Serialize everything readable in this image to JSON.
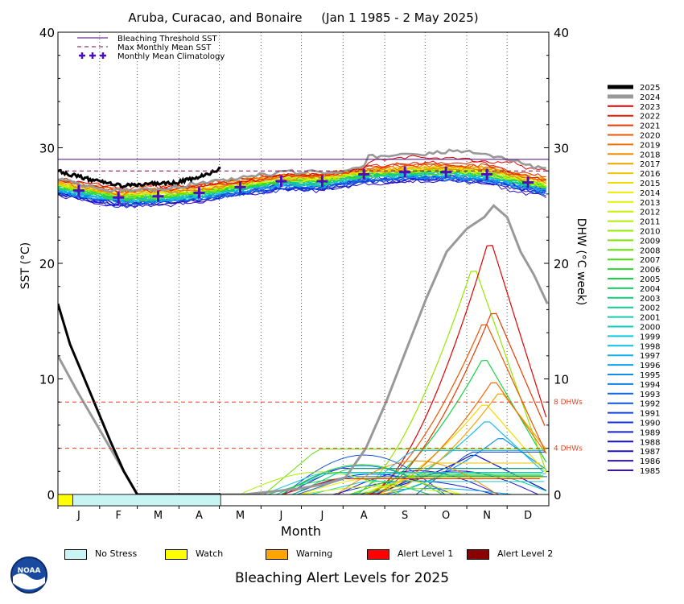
{
  "chart_data": {
    "type": "line",
    "title": "Aruba, Curacao, and Bonaire     (Jan 1 1985 - 2 May 2025)",
    "xlabel": "Month",
    "ylabel_left": "SST (°C)",
    "ylabel_right": "DHW (°C week)",
    "ylim": [
      0,
      40
    ],
    "yticks": [
      0,
      10,
      20,
      30,
      40
    ],
    "month_labels": [
      "J",
      "F",
      "M",
      "A",
      "M",
      "J",
      "J",
      "A",
      "S",
      "O",
      "N",
      "D"
    ],
    "grid": "dotted vertical month lines",
    "legend_top": [
      {
        "label": "Bleaching Threshold SST",
        "style": "solid",
        "color": "#4b0082"
      },
      {
        "label": "Max Monthly Mean SST",
        "style": "dashed",
        "color": "#7a0040"
      },
      {
        "label": "Monthly Mean Climatology",
        "style": "plus",
        "color": "#4b0fbf"
      }
    ],
    "bleaching_threshold": 29.0,
    "max_monthly_mean": 28.0,
    "dhw_threshold_lines": [
      {
        "label": "8 DHWs",
        "value": 8
      },
      {
        "label": "4 DHWs",
        "value": 4
      }
    ],
    "climatology": {
      "months": [
        1,
        2,
        3,
        4,
        5,
        6,
        7,
        8,
        9,
        10,
        11,
        12
      ],
      "values": [
        26.3,
        25.7,
        25.8,
        26.1,
        26.6,
        27.1,
        27.1,
        27.7,
        27.9,
        27.9,
        27.7,
        27.0
      ]
    },
    "years": [
      "2025",
      "2024",
      "2023",
      "2022",
      "2021",
      "2020",
      "2019",
      "2018",
      "2017",
      "2016",
      "2015",
      "2014",
      "2013",
      "2012",
      "2011",
      "2010",
      "2009",
      "2008",
      "2007",
      "2006",
      "2005",
      "2004",
      "2003",
      "2002",
      "2001",
      "2000",
      "1999",
      "1998",
      "1997",
      "1996",
      "1995",
      "1994",
      "1993",
      "1992",
      "1991",
      "1990",
      "1989",
      "1988",
      "1987",
      "1986",
      "1985"
    ],
    "year_colors": {
      "2025": "#000000",
      "2024": "#999999",
      "2023": "#e00000",
      "2022": "#e01a00",
      "2021": "#e83a00",
      "2020": "#ec5500",
      "2019": "#ef7000",
      "2018": "#f08c00",
      "2017": "#f0a400",
      "2016": "#f2c200",
      "2015": "#f4da00",
      "2014": "#f0ea00",
      "2013": "#e0f000",
      "2012": "#c8f000",
      "2011": "#b0ee00",
      "2010": "#96e800",
      "2009": "#7ce400",
      "2008": "#60e000",
      "2007": "#44dc10",
      "2006": "#28d830",
      "2005": "#14d448",
      "2004": "#10d060",
      "2003": "#10cc7a",
      "2002": "#10cc94",
      "2001": "#10ccae",
      "2000": "#10ccc6",
      "1999": "#10c8dc",
      "1998": "#10c0ec",
      "1997": "#10b0ee",
      "1996": "#10a0ee",
      "1995": "#1090ec",
      "1994": "#107ce8",
      "1993": "#1068e4",
      "1992": "#1054e0",
      "1991": "#1040dc",
      "1990": "#1030d8",
      "1989": "#1020d0",
      "1988": "#1010c8",
      "1987": "#2010c4",
      "1986": "#3010c4",
      "1985": "#4010c8"
    },
    "sst_2025": {
      "day": [
        1,
        10,
        20,
        30,
        40,
        50,
        60,
        70,
        80,
        90,
        100,
        110,
        122
      ],
      "sst": [
        28.0,
        27.7,
        27.4,
        27.1,
        26.9,
        26.7,
        26.8,
        26.9,
        26.9,
        27.0,
        27.3,
        27.6,
        28.2
      ]
    },
    "dhw_2025": {
      "day": [
        1,
        10,
        20,
        30,
        40,
        50,
        60,
        70,
        80,
        90,
        100,
        122
      ],
      "dhw": [
        16.5,
        13.0,
        10.2,
        7.4,
        4.6,
        2.0,
        0.0,
        0.0,
        0.0,
        0.0,
        0.0,
        0.0
      ]
    },
    "dhw_2024": {
      "day": [
        1,
        15,
        30,
        45,
        60,
        100,
        140,
        180,
        200,
        215,
        230,
        245,
        260,
        275,
        290,
        305,
        318,
        325,
        335,
        345,
        355,
        365
      ],
      "dhw": [
        12.0,
        9.0,
        6.0,
        3.0,
        0.0,
        0.0,
        0.0,
        0.5,
        0.9,
        1.5,
        4.0,
        8.0,
        12.5,
        17.0,
        21.0,
        23.0,
        24.0,
        25.0,
        24.0,
        21.0,
        19.0,
        16.5
      ]
    },
    "dhw_peak_by_year": {
      "2023": 22.3,
      "2010": 20.0,
      "2021": 16.2,
      "2020": 15.2,
      "2005": 12.0,
      "2019": 10.0,
      "2017": 9.0,
      "2015": 8.0,
      "1998": 6.5,
      "1995": 5.0,
      "1988": 3.5
    },
    "bleaching_alert_2025": [
      {
        "level": "Watch",
        "from_day": 1,
        "to_day": 12
      },
      {
        "level": "No Stress",
        "from_day": 12,
        "to_day": 122
      }
    ]
  },
  "alert_legend": [
    {
      "label": "No Stress",
      "color": "#c8f4f4"
    },
    {
      "label": "Watch",
      "color": "#ffff00"
    },
    {
      "label": "Warning",
      "color": "#ffa500"
    },
    {
      "label": "Alert Level 1",
      "color": "#ff0000"
    },
    {
      "label": "Alert Level 2",
      "color": "#8b0000"
    }
  ],
  "bottom_title": "Bleaching Alert Levels for 2025",
  "logo_text": "NOAA"
}
